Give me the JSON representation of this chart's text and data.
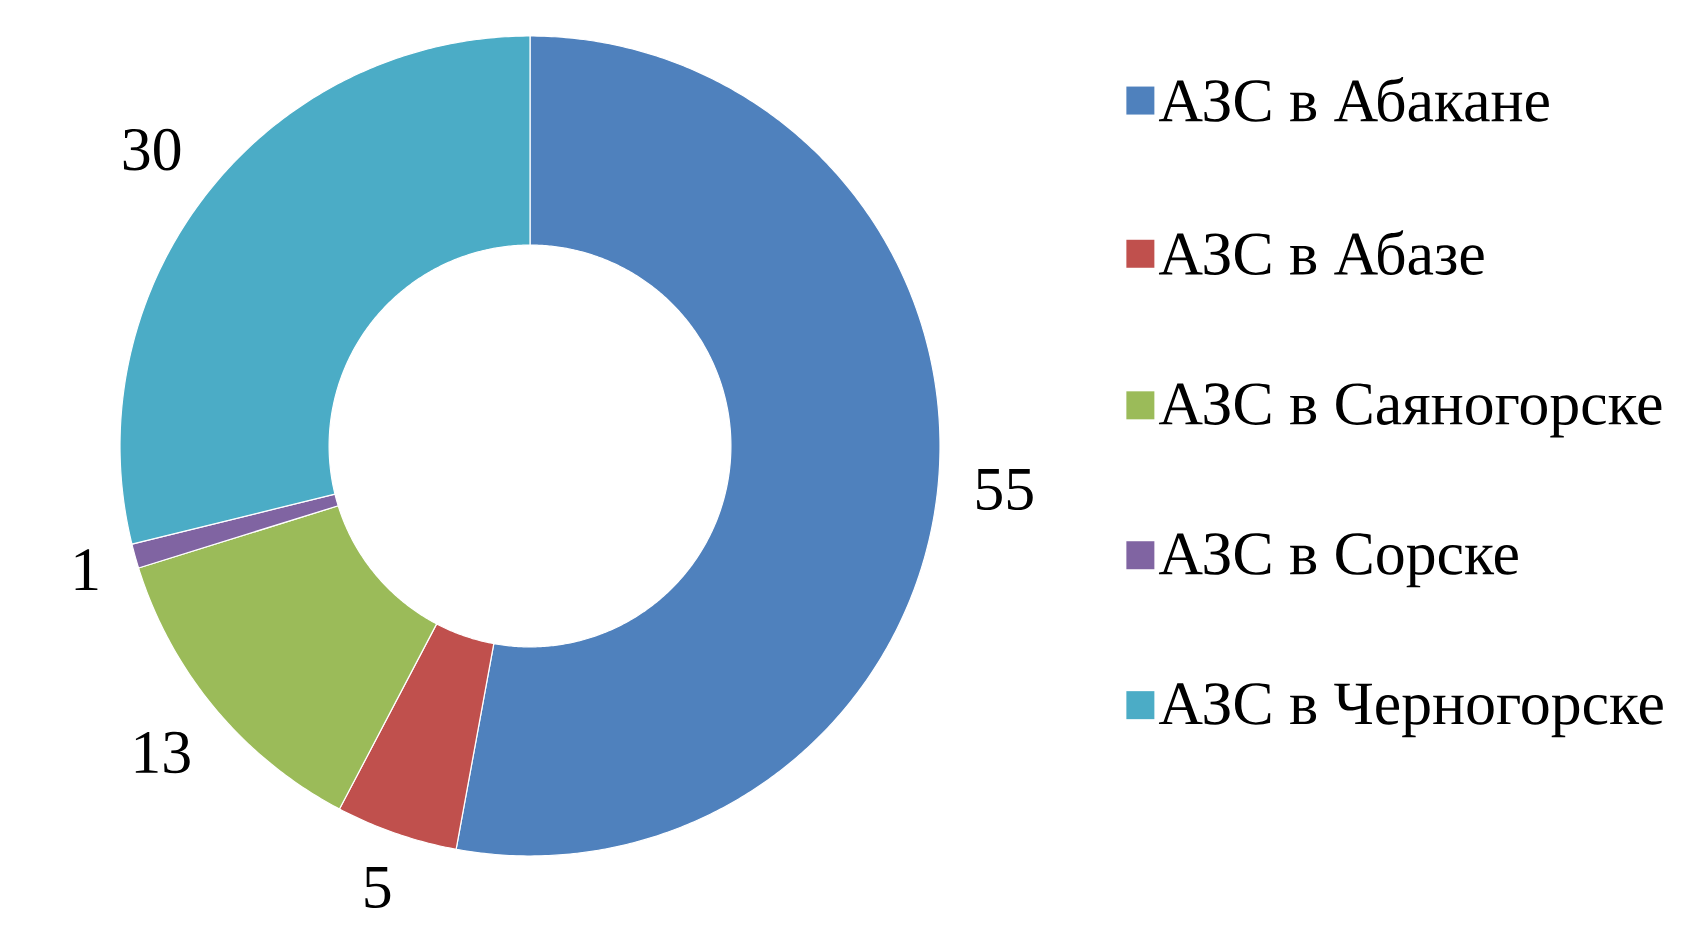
{
  "chart_data": {
    "type": "donut",
    "categories": [
      "АЗС в Абакане",
      "АЗС в Абазе",
      "АЗС в  Саяногорске",
      "АЗС в  Сорске",
      "АЗС в Черногорске"
    ],
    "values": [
      55,
      5,
      13,
      1,
      30
    ],
    "colors": [
      "#4f81bd",
      "#c0504d",
      "#9bbb59",
      "#8064a2",
      "#4bacc6"
    ],
    "data_labels": true,
    "legend": "right"
  }
}
